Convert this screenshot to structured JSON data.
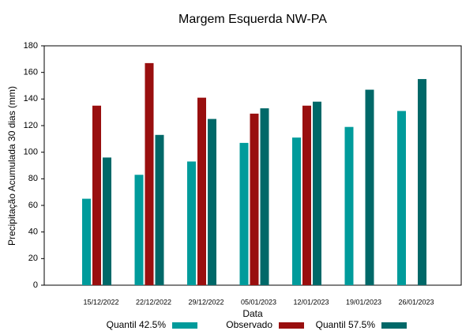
{
  "chart_data": {
    "type": "bar",
    "title": "Margem Esquerda NW-PA",
    "x_label": "Data",
    "y_label": "Precipitação Acumulada 30 dias (mm)",
    "categories": [
      "15/12/2022",
      "22/12/2022",
      "29/12/2022",
      "05/01/2023",
      "12/01/2023",
      "19/01/2023",
      "26/01/2023"
    ],
    "series": [
      {
        "name": "Quantil 42.5%",
        "color": "#009b9b",
        "values": [
          65,
          83,
          93,
          107,
          111,
          119,
          131
        ]
      },
      {
        "name": "Observado",
        "color": "#990f0f",
        "values": [
          135,
          167,
          141,
          129,
          135,
          null,
          null
        ]
      },
      {
        "name": "Quantil 57.5%",
        "color": "#006868",
        "values": [
          96,
          113,
          125,
          133,
          138,
          147,
          155
        ]
      }
    ],
    "ylim": [
      0,
      180
    ],
    "yticks": [
      0,
      20,
      40,
      60,
      80,
      100,
      120,
      140,
      160,
      180
    ],
    "legend": "bottom"
  }
}
